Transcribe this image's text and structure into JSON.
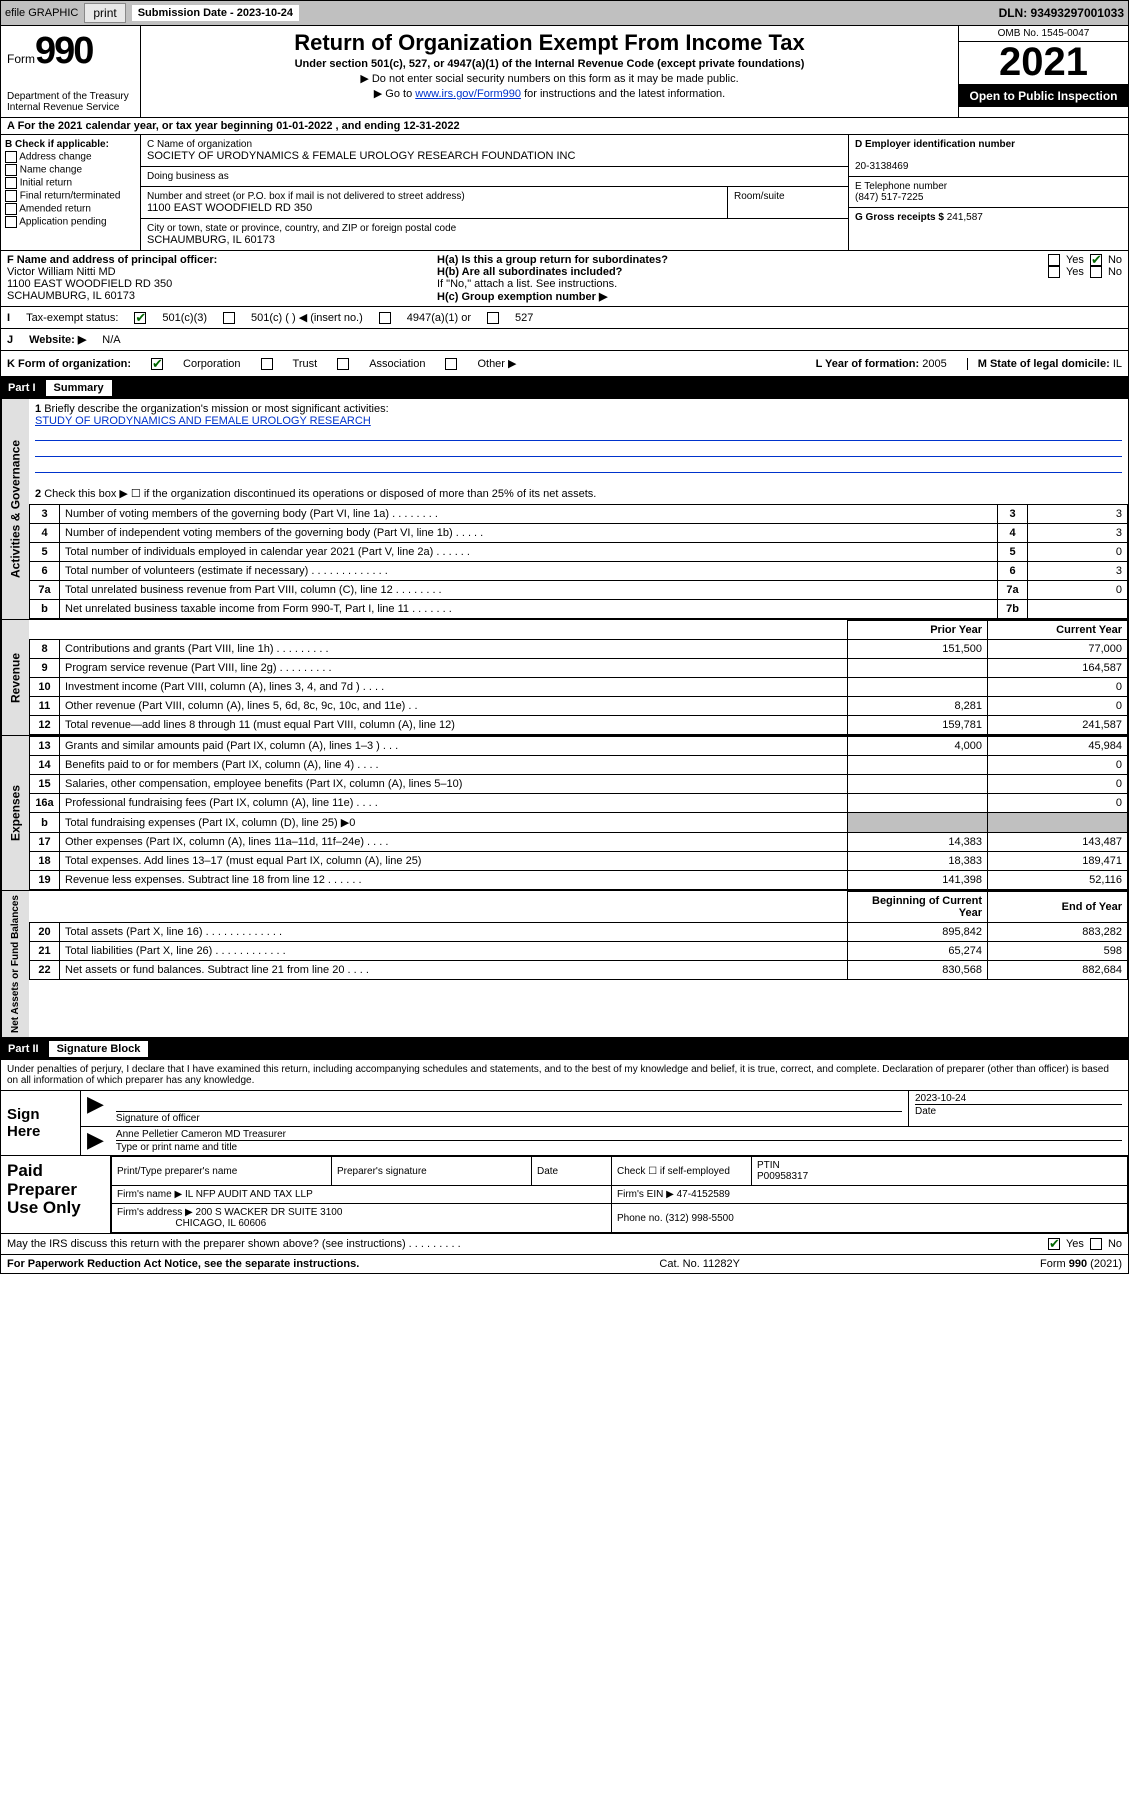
{
  "topbar": {
    "efile_label": "efile GRAPHIC",
    "print_btn": "print",
    "sub_date_label": "Submission Date - 2023-10-24",
    "dln": "DLN: 93493297001033"
  },
  "header": {
    "form_word": "Form",
    "form_num": "990",
    "dept": "Department of the Treasury",
    "irs": "Internal Revenue Service",
    "title": "Return of Organization Exempt From Income Tax",
    "subtitle": "Under section 501(c), 527, or 4947(a)(1) of the Internal Revenue Code (except private foundations)",
    "note_ssn": "▶ Do not enter social security numbers on this form as it may be made public.",
    "note_goto_pre": "▶ Go to ",
    "note_goto_link": "www.irs.gov/Form990",
    "note_goto_post": " for instructions and the latest information.",
    "omb": "OMB No. 1545-0047",
    "year": "2021",
    "open_inspect": "Open to Public Inspection"
  },
  "period": {
    "line": "A For the 2021 calendar year, or tax year beginning 01-01-2022  , and ending 12-31-2022"
  },
  "colB": {
    "hdr": "B Check if applicable:",
    "addr_change": "Address change",
    "name_change": "Name change",
    "initial": "Initial return",
    "final": "Final return/terminated",
    "amended": "Amended return",
    "app_pending": "Application pending"
  },
  "colC": {
    "name_label": "C Name of organization",
    "name_val": "SOCIETY OF URODYNAMICS & FEMALE UROLOGY RESEARCH FOUNDATION INC",
    "dba_label": "Doing business as",
    "dba_val": "",
    "street_label": "Number and street (or P.O. box if mail is not delivered to street address)",
    "room_label": "Room/suite",
    "street_val": "1100 EAST WOODFIELD RD 350",
    "city_label": "City or town, state or province, country, and ZIP or foreign postal code",
    "city_val": "SCHAUMBURG, IL  60173"
  },
  "colD": {
    "ein_label": "D Employer identification number",
    "ein_val": "20-3138469",
    "phone_label": "E Telephone number",
    "phone_val": "(847) 517-7225",
    "gross_label": "G Gross receipts $",
    "gross_val": "241,587"
  },
  "rowF": {
    "label": "F  Name and address of principal officer:",
    "name": "Victor William Nitti MD",
    "addr1": "1100 EAST WOODFIELD RD 350",
    "addr2": "SCHAUMBURG, IL  60173"
  },
  "rowH": {
    "ha_q": "H(a)  Is this a group return for subordinates?",
    "hb_q": "H(b)  Are all subordinates included?",
    "hb_note": "If \"No,\" attach a list. See instructions.",
    "hc_q": "H(c)  Group exemption number ▶",
    "yes": "Yes",
    "no": "No"
  },
  "rowI": {
    "label": "I",
    "status": "Tax-exempt status:",
    "c3": "501(c)(3)",
    "c_other": "501(c) (  ) ◀ (insert no.)",
    "a4947": "4947(a)(1) or",
    "s527": "527"
  },
  "rowJ": {
    "label": "J",
    "website_label": "Website: ▶",
    "website_val": "N/A"
  },
  "rowK": {
    "label": "K Form of organization:",
    "corp": "Corporation",
    "trust": "Trust",
    "assoc": "Association",
    "other": "Other ▶",
    "l_label": "L Year of formation:",
    "l_val": "2005",
    "m_label": "M State of legal domicile:",
    "m_val": "IL"
  },
  "part1": {
    "title": "Part I",
    "subtitle": "Summary",
    "q1_label": "1",
    "q1_text": "Briefly describe the organization's mission or most significant activities:",
    "q1_mission": "STUDY OF URODYNAMICS AND FEMALE UROLOGY RESEARCH",
    "q2_label": "2",
    "q2_text": "Check this box ▶ ☐  if the organization discontinued its operations or disposed of more than 25% of its net assets."
  },
  "governance": {
    "tab": "Activities & Governance",
    "rows": [
      {
        "n": "3",
        "desc": "Number of voting members of the governing body (Part VI, line 1a)  .    .    .    .    .    .    .    .",
        "key": "3",
        "amt": "3"
      },
      {
        "n": "4",
        "desc": "Number of independent voting members of the governing body (Part VI, line 1b)   .    .    .    .    .",
        "key": "4",
        "amt": "3"
      },
      {
        "n": "5",
        "desc": "Total number of individuals employed in calendar year 2021 (Part V, line 2a)    .    .    .    .    .    .",
        "key": "5",
        "amt": "0"
      },
      {
        "n": "6",
        "desc": "Total number of volunteers (estimate if necessary)   .    .    .    .    .    .    .    .    .    .    .    .    .",
        "key": "6",
        "amt": "3"
      },
      {
        "n": "7a",
        "desc": "Total unrelated business revenue from Part VIII, column (C), line 12   .    .    .    .    .    .    .    .",
        "key": "7a",
        "amt": "0"
      },
      {
        "n": "b",
        "desc": "Net unrelated business taxable income from Form 990-T, Part I, line 11   .    .    .    .    .    .    .",
        "key": "7b",
        "amt": ""
      }
    ]
  },
  "revenue": {
    "tab": "Revenue",
    "hdr_prior": "Prior Year",
    "hdr_curr": "Current Year",
    "rows": [
      {
        "n": "8",
        "desc": "Contributions and grants (Part VIII, line 1h)   .    .    .    .    .    .    .    .    .",
        "pr": "151,500",
        "cy": "77,000"
      },
      {
        "n": "9",
        "desc": "Program service revenue (Part VIII, line 2g)   .    .    .    .    .    .    .    .    .",
        "pr": "",
        "cy": "164,587"
      },
      {
        "n": "10",
        "desc": "Investment income (Part VIII, column (A), lines 3, 4, and 7d )   .    .    .    .",
        "pr": "",
        "cy": "0"
      },
      {
        "n": "11",
        "desc": "Other revenue (Part VIII, column (A), lines 5, 6d, 8c, 9c, 10c, and 11e)   .    .",
        "pr": "8,281",
        "cy": "0"
      },
      {
        "n": "12",
        "desc": "Total revenue—add lines 8 through 11 (must equal Part VIII, column (A), line 12)",
        "pr": "159,781",
        "cy": "241,587"
      }
    ]
  },
  "expenses": {
    "tab": "Expenses",
    "rows": [
      {
        "n": "13",
        "desc": "Grants and similar amounts paid (Part IX, column (A), lines 1–3 )   .    .    .",
        "pr": "4,000",
        "cy": "45,984"
      },
      {
        "n": "14",
        "desc": "Benefits paid to or for members (Part IX, column (A), line 4)   .    .    .    .",
        "pr": "",
        "cy": "0"
      },
      {
        "n": "15",
        "desc": "Salaries, other compensation, employee benefits (Part IX, column (A), lines 5–10)",
        "pr": "",
        "cy": "0"
      },
      {
        "n": "16a",
        "desc": "Professional fundraising fees (Part IX, column (A), line 11e)   .    .    .    .",
        "pr": "",
        "cy": "0"
      },
      {
        "n": "b",
        "desc": "Total fundraising expenses (Part IX, column (D), line 25) ▶0",
        "pr": "SHADE",
        "cy": "SHADE"
      },
      {
        "n": "17",
        "desc": "Other expenses (Part IX, column (A), lines 11a–11d, 11f–24e)   .    .    .    .",
        "pr": "14,383",
        "cy": "143,487"
      },
      {
        "n": "18",
        "desc": "Total expenses. Add lines 13–17 (must equal Part IX, column (A), line 25)",
        "pr": "18,383",
        "cy": "189,471"
      },
      {
        "n": "19",
        "desc": "Revenue less expenses. Subtract line 18 from line 12   .    .    .    .    .    .",
        "pr": "141,398",
        "cy": "52,116"
      }
    ]
  },
  "netassets": {
    "tab": "Net Assets or Fund Balances",
    "hdr_beg": "Beginning of Current Year",
    "hdr_end": "End of Year",
    "rows": [
      {
        "n": "20",
        "desc": "Total assets (Part X, line 16)   .    .    .    .    .    .    .    .    .    .    .    .    .",
        "pr": "895,842",
        "cy": "883,282"
      },
      {
        "n": "21",
        "desc": "Total liabilities (Part X, line 26)   .    .    .    .    .    .    .    .    .    .    .    .",
        "pr": "65,274",
        "cy": "598"
      },
      {
        "n": "22",
        "desc": "Net assets or fund balances. Subtract line 21 from line 20   .    .    .    .",
        "pr": "830,568",
        "cy": "882,684"
      }
    ]
  },
  "part2": {
    "title": "Part II",
    "subtitle": "Signature Block",
    "penalty": "Under penalties of perjury, I declare that I have examined this return, including accompanying schedules and statements, and to the best of my knowledge and belief, it is true, correct, and complete. Declaration of preparer (other than officer) is based on all information of which preparer has any knowledge."
  },
  "sign": {
    "here": "Sign Here",
    "sig_officer_label": "Signature of officer",
    "date_label": "Date",
    "date_val": "2023-10-24",
    "name_title": "Anne Pelletier Cameron MD Treasurer",
    "name_label": "Type or print name and title"
  },
  "prep": {
    "title": "Paid Preparer Use Only",
    "print_label": "Print/Type preparer's name",
    "sig_label": "Preparer's signature",
    "date_label": "Date",
    "check_label": "Check ☐ if self-employed",
    "ptin_label": "PTIN",
    "ptin_val": "P00958317",
    "firm_name_label": "Firm's name    ▶",
    "firm_name_val": "IL NFP AUDIT AND TAX LLP",
    "firm_ein_label": "Firm's EIN ▶",
    "firm_ein_val": "47-4152589",
    "firm_addr_label": "Firm's address ▶",
    "firm_addr_val1": "200 S WACKER DR SUITE 3100",
    "firm_addr_val2": "CHICAGO, IL  60606",
    "phone_label": "Phone no.",
    "phone_val": "(312) 998-5500"
  },
  "discuss": {
    "q": "May the IRS discuss this return with the preparer shown above? (see instructions)   .    .    .    .    .    .    .    .    .",
    "yes": "Yes",
    "no": "No"
  },
  "footer": {
    "left": "For Paperwork Reduction Act Notice, see the separate instructions.",
    "mid": "Cat. No. 11282Y",
    "right": "Form 990 (2021)",
    "right_bold": "990"
  },
  "colors": {
    "link": "#0033cc",
    "check": "#006600",
    "shade": "#c0c0c0",
    "topbar": "#c0c0c0"
  }
}
